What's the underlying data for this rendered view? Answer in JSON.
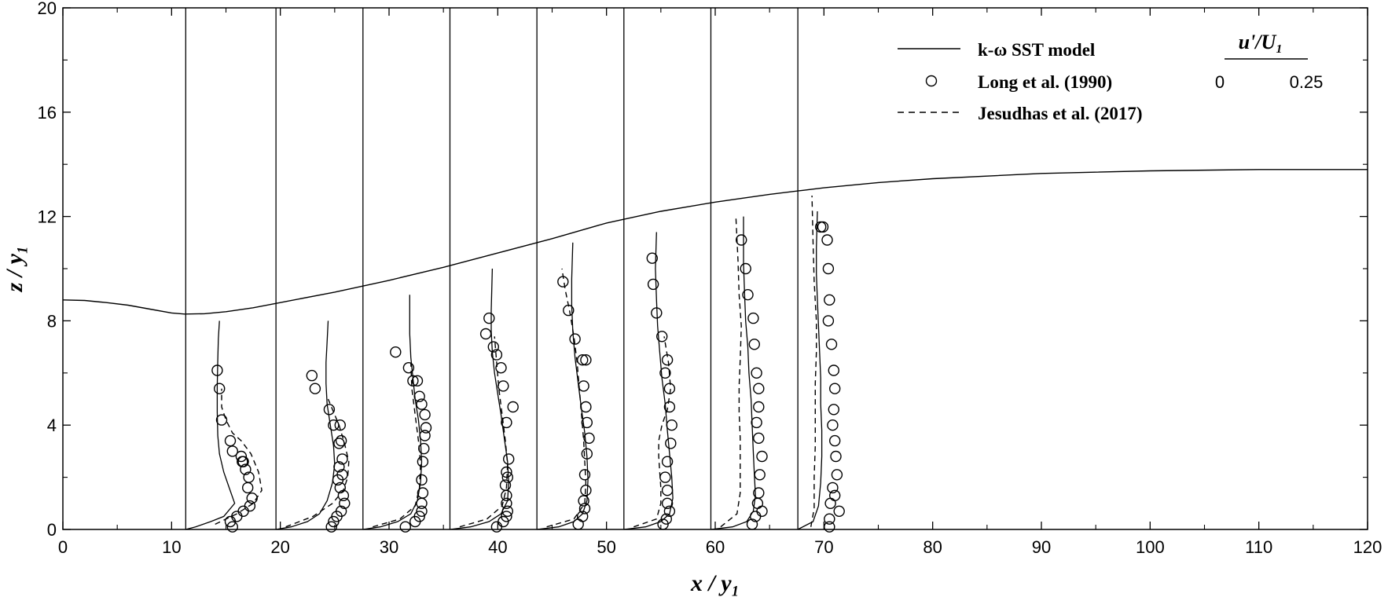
{
  "chart_data": {
    "type": "line",
    "xlabel": "x / y₁",
    "ylabel": "z / y₁",
    "xlim": [
      0,
      120
    ],
    "ylim": [
      0,
      20
    ],
    "x_ticks": [
      "0",
      "10",
      "20",
      "30",
      "40",
      "50",
      "60",
      "70",
      "80",
      "90",
      "100",
      "110",
      "120"
    ],
    "y_ticks": [
      "0",
      "4",
      "8",
      "12",
      "16",
      "20"
    ],
    "grid": false,
    "legend_position": "top-right",
    "legend": {
      "model": "k-ω SST model",
      "experiment": "Long et al. (1990)",
      "les": "Jesudhas et al. (2017)"
    },
    "scale_bar": {
      "title": "u'/U₁",
      "min_label": "0",
      "max_label": "0.25"
    },
    "scale_reference": 0.25,
    "scale_span_x": 5.0,
    "free_surface": {
      "name": "free surface",
      "x": [
        0,
        2,
        4,
        6,
        8,
        10,
        11.2,
        13,
        15,
        17.5,
        20,
        25,
        30,
        35,
        40,
        45,
        50,
        55,
        60,
        65,
        68,
        70,
        75,
        80,
        90,
        100,
        110,
        120
      ],
      "z": [
        8.8,
        8.78,
        8.7,
        8.6,
        8.45,
        8.3,
        8.26,
        8.27,
        8.35,
        8.5,
        8.7,
        9.1,
        9.55,
        10.05,
        10.6,
        11.15,
        11.75,
        12.2,
        12.55,
        12.85,
        13.0,
        13.1,
        13.3,
        13.45,
        13.65,
        13.75,
        13.8,
        13.8
      ]
    },
    "stations": [
      {
        "x0": 11.3,
        "model": {
          "x": [
            11.3,
            12.2,
            13.6,
            14.8,
            15.8,
            15.3,
            14.8,
            14.4,
            14.25,
            14.2,
            14.2,
            14.25,
            14.3,
            14.4
          ],
          "z": [
            0,
            0.1,
            0.3,
            0.5,
            1.0,
            1.6,
            2.2,
            2.9,
            3.6,
            4.5,
            5.5,
            6.5,
            7.3,
            8.0
          ]
        },
        "les": {
          "x": [
            14.0,
            16.0,
            17.5,
            18.3,
            18.0,
            17.3,
            16.4,
            15.6,
            15.0,
            14.6,
            14.6
          ],
          "z": [
            0.2,
            0.6,
            1.0,
            1.5,
            2.2,
            2.9,
            3.4,
            3.7,
            4.2,
            4.7,
            5.4
          ]
        },
        "exp": {
          "x": [
            15.6,
            15.4,
            16.0,
            16.6,
            17.2,
            17.4,
            17.0,
            17.1,
            16.8,
            16.6,
            16.4,
            16.5,
            15.6,
            15.4,
            14.6,
            14.4,
            14.2
          ],
          "z": [
            0.1,
            0.3,
            0.5,
            0.7,
            0.9,
            1.2,
            1.6,
            2.0,
            2.3,
            2.6,
            2.8,
            2.6,
            3.0,
            3.4,
            4.2,
            5.4,
            6.1
          ]
        }
      },
      {
        "x0": 19.6,
        "model": {
          "x": [
            19.6,
            21.0,
            22.5,
            23.6,
            24.3,
            24.8,
            25.0,
            24.9,
            24.6,
            24.3,
            24.2,
            24.2,
            24.3,
            24.4
          ],
          "z": [
            0,
            0.1,
            0.3,
            0.6,
            1.1,
            1.8,
            2.5,
            3.2,
            4.0,
            4.8,
            5.6,
            6.4,
            7.2,
            8.0
          ]
        },
        "les": {
          "x": [
            20.5,
            23.0,
            24.8,
            25.8,
            26.2,
            26.3,
            25.9,
            25.4,
            24.9,
            24.4
          ],
          "z": [
            0.1,
            0.5,
            1.0,
            1.5,
            2.0,
            2.6,
            3.3,
            4.0,
            4.5,
            5.0
          ]
        },
        "exp": {
          "x": [
            24.7,
            24.9,
            25.2,
            25.6,
            25.9,
            25.8,
            25.5,
            25.3,
            25.7,
            25.4,
            25.7,
            25.6,
            25.4,
            25.5,
            24.9,
            24.5,
            23.2,
            22.9
          ],
          "z": [
            0.1,
            0.3,
            0.5,
            0.7,
            1.0,
            1.3,
            1.6,
            1.9,
            2.1,
            2.4,
            2.7,
            3.4,
            3.3,
            4.0,
            4.0,
            4.6,
            5.4,
            5.9
          ]
        }
      },
      {
        "x0": 27.6,
        "model": {
          "x": [
            27.6,
            29.2,
            30.8,
            32.0,
            32.6,
            32.9,
            33.0,
            32.9,
            32.7,
            32.4,
            32.2,
            32.0,
            31.9,
            31.9,
            31.9
          ],
          "z": [
            0,
            0.1,
            0.3,
            0.6,
            1.1,
            1.8,
            2.6,
            3.4,
            4.2,
            5.0,
            5.8,
            6.6,
            7.5,
            8.3,
            9.0
          ]
        },
        "les": {
          "x": [
            28.5,
            31.0,
            32.4,
            32.8,
            32.9,
            32.7,
            32.4,
            32.1,
            32.0
          ],
          "z": [
            0.1,
            0.4,
            0.9,
            1.6,
            2.5,
            3.4,
            4.4,
            5.4,
            6.4
          ]
        },
        "exp": {
          "x": [
            31.5,
            32.4,
            32.8,
            33.0,
            33.0,
            33.1,
            33.0,
            33.1,
            33.2,
            33.3,
            33.4,
            33.3,
            33.0,
            32.8,
            32.6,
            32.2,
            31.8,
            30.6
          ],
          "z": [
            0.1,
            0.3,
            0.5,
            0.7,
            1.0,
            1.4,
            1.9,
            2.6,
            3.1,
            3.6,
            3.9,
            4.4,
            4.8,
            5.1,
            5.7,
            5.7,
            6.2,
            6.8
          ]
        }
      },
      {
        "x0": 35.6,
        "model": {
          "x": [
            35.6,
            37.5,
            39.2,
            40.3,
            40.9,
            41.0,
            40.9,
            40.6,
            40.3,
            40.0,
            39.7,
            39.5,
            39.4,
            39.4,
            39.5
          ],
          "z": [
            0,
            0.1,
            0.3,
            0.6,
            1.1,
            1.8,
            2.6,
            3.5,
            4.4,
            5.2,
            6.0,
            6.8,
            7.6,
            8.4,
            10.0
          ]
        },
        "les": {
          "x": [
            36.5,
            39.0,
            40.4,
            40.8,
            40.9,
            40.7,
            40.4,
            40.1,
            39.9,
            39.7
          ],
          "z": [
            0.1,
            0.4,
            0.9,
            1.6,
            2.5,
            3.4,
            4.4,
            5.4,
            6.4,
            7.4
          ]
        },
        "exp": {
          "x": [
            39.9,
            40.5,
            40.8,
            40.9,
            40.8,
            40.8,
            40.7,
            40.9,
            40.8,
            41.0,
            41.4,
            40.8,
            40.5,
            40.3,
            39.9,
            39.6,
            38.9,
            39.2
          ],
          "z": [
            0.1,
            0.3,
            0.5,
            0.7,
            1.0,
            1.3,
            1.7,
            2.0,
            2.2,
            2.7,
            4.7,
            4.1,
            5.5,
            6.2,
            6.7,
            7.0,
            7.5,
            8.1
          ]
        }
      },
      {
        "x0": 43.6,
        "model": {
          "x": [
            43.6,
            45.6,
            47.0,
            47.8,
            48.2,
            48.3,
            48.2,
            48.0,
            47.7,
            47.4,
            47.1,
            46.9,
            46.8,
            46.8,
            46.9
          ],
          "z": [
            0,
            0.1,
            0.3,
            0.6,
            1.1,
            1.9,
            2.8,
            3.7,
            4.6,
            5.6,
            6.6,
            7.6,
            8.6,
            9.6,
            11.0
          ]
        },
        "les": {
          "x": [
            44.5,
            47.0,
            48.0,
            48.1,
            48.0,
            47.9,
            47.7,
            47.5,
            47.3,
            47.0,
            46.6,
            46.2,
            45.9
          ],
          "z": [
            0.1,
            0.4,
            1.0,
            1.8,
            2.6,
            3.4,
            4.4,
            5.4,
            6.4,
            7.4,
            8.4,
            9.2,
            10.0
          ]
        },
        "exp": {
          "x": [
            47.4,
            47.8,
            48.0,
            47.9,
            48.1,
            48.0,
            48.2,
            48.4,
            48.2,
            48.1,
            47.9,
            47.8,
            48.1,
            47.1,
            46.5,
            46.0
          ],
          "z": [
            0.2,
            0.5,
            0.8,
            1.1,
            1.5,
            2.1,
            2.9,
            3.5,
            4.1,
            4.7,
            5.5,
            6.5,
            6.5,
            7.3,
            8.4,
            9.5
          ]
        }
      },
      {
        "x0": 51.6,
        "model": {
          "x": [
            51.6,
            53.6,
            55.0,
            55.8,
            56.1,
            56.0,
            55.8,
            55.6,
            55.4,
            55.1,
            54.9,
            54.7,
            54.6,
            54.5,
            54.6
          ],
          "z": [
            0,
            0.1,
            0.3,
            0.6,
            1.2,
            2.0,
            2.9,
            3.8,
            4.8,
            5.8,
            6.8,
            7.8,
            8.8,
            10.0,
            11.4
          ]
        },
        "les": {
          "x": [
            52.5,
            54.6,
            55.0,
            55.0,
            54.9,
            54.8,
            54.8,
            55.1,
            55.6,
            55.9,
            55.7,
            55.3
          ],
          "z": [
            0.1,
            0.4,
            1.0,
            1.6,
            2.2,
            2.8,
            3.4,
            4.0,
            4.6,
            5.4,
            6.4,
            7.4
          ]
        },
        "exp": {
          "x": [
            55.2,
            55.5,
            55.8,
            55.6,
            55.6,
            55.4,
            55.6,
            55.9,
            56.0,
            55.8,
            55.8,
            55.4,
            55.6,
            55.1,
            54.6,
            54.3,
            54.2
          ],
          "z": [
            0.2,
            0.4,
            0.7,
            1.0,
            1.5,
            2.0,
            2.6,
            3.3,
            4.0,
            4.7,
            5.4,
            6.0,
            6.5,
            7.4,
            8.3,
            9.4,
            10.4
          ]
        }
      },
      {
        "x0": 59.6,
        "model": {
          "x": [
            59.6,
            61.6,
            62.9,
            63.5,
            63.7,
            63.6,
            63.5,
            63.4,
            63.3,
            63.1,
            63.0,
            62.8,
            62.7,
            62.6,
            62.6
          ],
          "z": [
            0,
            0.1,
            0.3,
            0.7,
            1.3,
            2.1,
            3.0,
            4.0,
            5.0,
            6.0,
            7.0,
            8.0,
            9.0,
            10.2,
            12.0
          ]
        },
        "les": {
          "x": [
            60.5,
            62.0,
            62.3,
            62.3,
            62.3,
            62.2,
            62.2,
            62.3,
            62.4,
            62.2,
            62.1,
            61.9
          ],
          "z": [
            0.1,
            0.6,
            1.4,
            2.5,
            3.5,
            4.5,
            5.5,
            6.5,
            7.8,
            9.0,
            10.3,
            12.0
          ]
        },
        "exp": {
          "x": [
            63.4,
            63.7,
            64.3,
            63.9,
            64.0,
            64.1,
            64.3,
            64.0,
            63.8,
            64.0,
            64.0,
            63.8,
            63.6,
            63.5,
            63.0,
            62.8,
            62.4
          ],
          "z": [
            0.2,
            0.5,
            0.7,
            1.0,
            1.4,
            2.1,
            2.8,
            3.5,
            4.1,
            4.7,
            5.4,
            6.0,
            7.1,
            8.1,
            9.0,
            10.0,
            11.1
          ]
        }
      },
      {
        "x0": 67.6,
        "model": {
          "x": [
            67.6,
            69.0,
            69.5,
            69.7,
            69.8,
            69.8,
            69.7,
            69.7,
            69.6,
            69.5,
            69.4,
            69.3,
            69.3,
            69.4
          ],
          "z": [
            0,
            0.3,
            0.9,
            1.8,
            2.8,
            3.8,
            4.8,
            5.8,
            6.8,
            7.8,
            8.8,
            9.8,
            10.8,
            12.2
          ]
        },
        "les": {
          "x": [
            68.8,
            69.1,
            69.1,
            69.2,
            69.2,
            69.2,
            69.3,
            69.3,
            69.1,
            69.0,
            68.9
          ],
          "z": [
            0.1,
            0.8,
            2.0,
            3.2,
            4.4,
            5.6,
            6.8,
            8.0,
            9.5,
            11.0,
            12.8
          ]
        },
        "exp": {
          "x": [
            70.5,
            70.5,
            70.6,
            71.4,
            71.0,
            70.8,
            71.2,
            71.1,
            71.0,
            70.8,
            70.9,
            71.0,
            70.9,
            70.7,
            70.4,
            70.5,
            70.4,
            70.3,
            69.9,
            69.7
          ],
          "z": [
            0.1,
            0.4,
            1.0,
            0.7,
            1.3,
            1.6,
            2.1,
            2.8,
            3.4,
            4.0,
            4.6,
            5.4,
            6.1,
            7.1,
            8.0,
            8.8,
            10.0,
            11.1,
            11.6,
            11.6
          ]
        }
      }
    ]
  }
}
